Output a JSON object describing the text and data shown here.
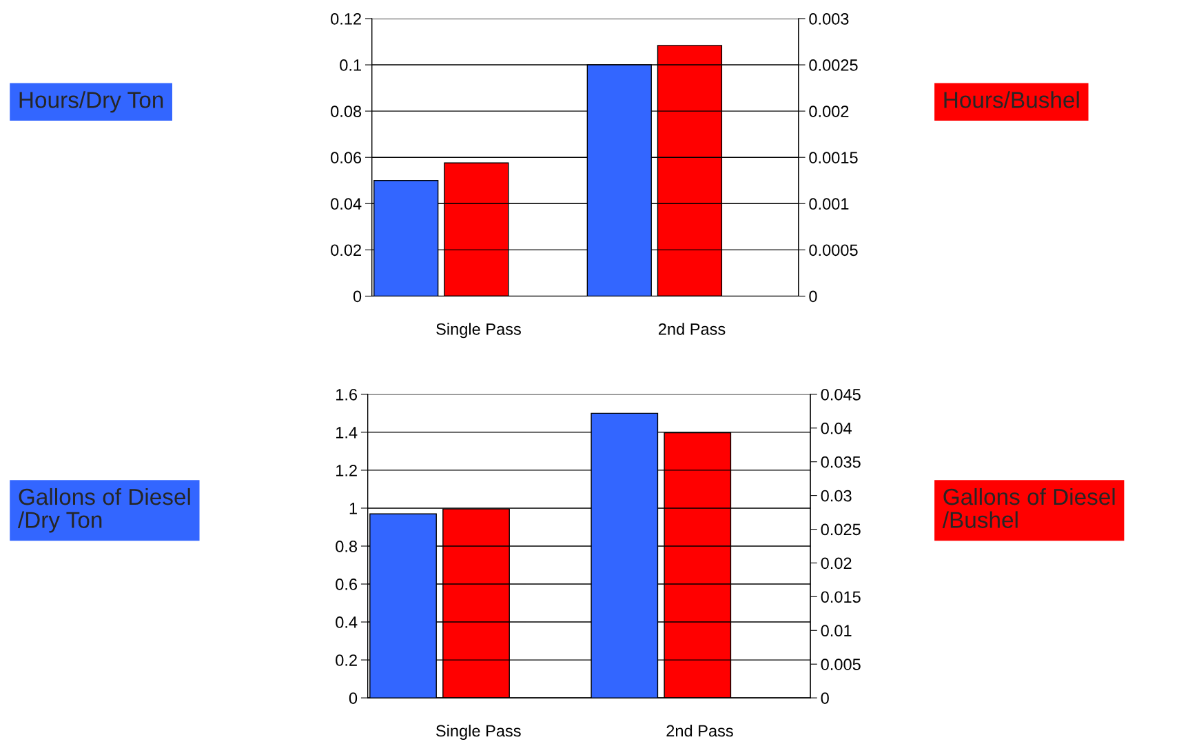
{
  "chart_data": [
    {
      "type": "bar",
      "ylabel": "Hours/Dry Ton",
      "y2label": "Hours/Bushel",
      "categories": [
        "Single Pass",
        "2nd Pass"
      ],
      "series": [
        {
          "color": "#3366ff",
          "values": [
            0.05,
            0.1
          ]
        },
        {
          "color": "#ff0000",
          "values": [
            0.00144,
            0.00271
          ],
          "axis": "y2"
        }
      ],
      "ylim": [
        0,
        0.12
      ],
      "yticks": [
        0,
        0.02,
        0.04,
        0.06,
        0.08,
        0.1,
        0.12
      ],
      "y2lim": [
        0,
        0.003
      ],
      "y2ticks": [
        0,
        0.0005,
        0.001,
        0.0015,
        0.002,
        0.0025,
        0.003
      ],
      "grid": "y",
      "legend": false
    },
    {
      "type": "bar",
      "ylabel": "Gallons of Diesel\n/Dry Ton",
      "y2label": "Gallons of Diesel\n/Bushel",
      "categories": [
        "Single Pass",
        "2nd Pass"
      ],
      "series": [
        {
          "color": "#3366ff",
          "values": [
            0.97,
            1.5
          ]
        },
        {
          "color": "#ff0000",
          "values": [
            0.028,
            0.0393
          ],
          "axis": "y2"
        }
      ],
      "ylim": [
        0,
        1.6
      ],
      "yticks": [
        0,
        0.2,
        0.4,
        0.6,
        0.8,
        1,
        1.2,
        1.4,
        1.6
      ],
      "y2lim": [
        0,
        0.045
      ],
      "y2ticks": [
        0,
        0.005,
        0.01,
        0.015,
        0.02,
        0.025,
        0.03,
        0.035,
        0.04,
        0.045
      ],
      "grid": "y",
      "legend": false
    }
  ]
}
